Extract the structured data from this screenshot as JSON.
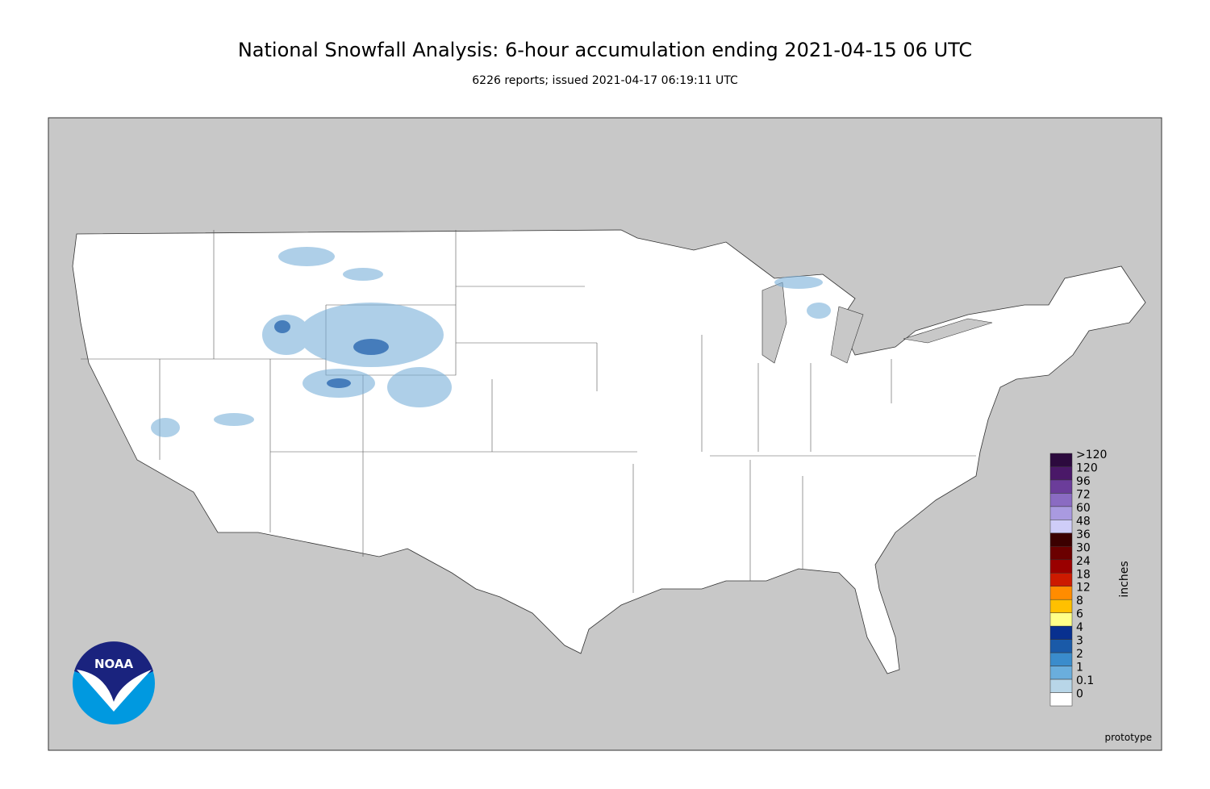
{
  "header": {
    "title": "National Snowfall Analysis: 6-hour accumulation ending 2021-04-15 06 UTC",
    "subtitle": "6226 reports; issued 2021-04-17 06:19:11 UTC"
  },
  "legend": {
    "title": "inches",
    "labels": [
      ">120",
      "120",
      "96",
      "72",
      "60",
      "48",
      "36",
      "30",
      "24",
      "18",
      "12",
      "8",
      "6",
      "4",
      "3",
      "2",
      "1",
      "0.1",
      "0"
    ],
    "colors": [
      "#2c0a3e",
      "#4a1868",
      "#6b3d9a",
      "#8a6bc2",
      "#a99ae0",
      "#cfcdf8",
      "#3b0000",
      "#6b0000",
      "#9a0000",
      "#cc1a00",
      "#ff8c00",
      "#ffc000",
      "#ffff88",
      "#08308f",
      "#1a5aa8",
      "#3a8ccc",
      "#6aaedd",
      "#b8d6e8",
      "#ffffff"
    ]
  },
  "logo": {
    "text": "NOAA"
  },
  "footer": {
    "note": "prototype"
  }
}
